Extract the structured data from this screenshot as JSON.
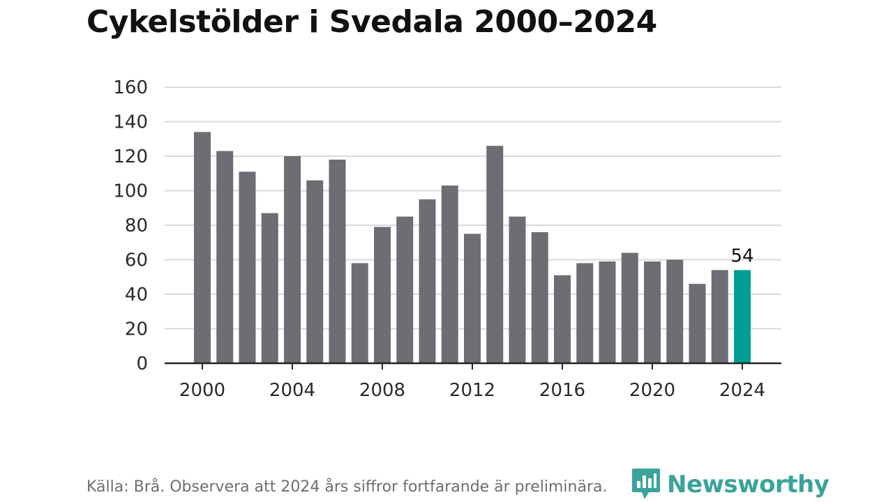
{
  "title": "Cykelstölder i Svedala 2000–2024",
  "source": "Källa: Brå. Observera att 2024 års siffror fortfarande är preliminära.",
  "brand": {
    "name": "Newsworthy",
    "icon": "newsworthy-logo-icon"
  },
  "colors": {
    "bar": "#6e6d73",
    "highlight": "#009e96",
    "grid": "#d9d9d9",
    "axis": "#222222",
    "brand": "#3aa39b"
  },
  "chart_data": {
    "type": "bar",
    "x": [
      2000,
      2001,
      2002,
      2003,
      2004,
      2005,
      2006,
      2007,
      2008,
      2009,
      2010,
      2011,
      2012,
      2013,
      2014,
      2015,
      2016,
      2017,
      2018,
      2019,
      2020,
      2021,
      2022,
      2023,
      2024
    ],
    "values": [
      134,
      123,
      111,
      87,
      120,
      106,
      118,
      58,
      79,
      85,
      95,
      103,
      75,
      126,
      85,
      76,
      51,
      58,
      59,
      64,
      59,
      60,
      46,
      54,
      54
    ],
    "highlight": {
      "x": 2024,
      "label": "54"
    },
    "ylim": [
      0,
      160
    ],
    "yticks": [
      0,
      20,
      40,
      60,
      80,
      100,
      120,
      140,
      160
    ],
    "xticks": [
      2000,
      2004,
      2008,
      2012,
      2016,
      2020,
      2024
    ],
    "grid": true
  }
}
